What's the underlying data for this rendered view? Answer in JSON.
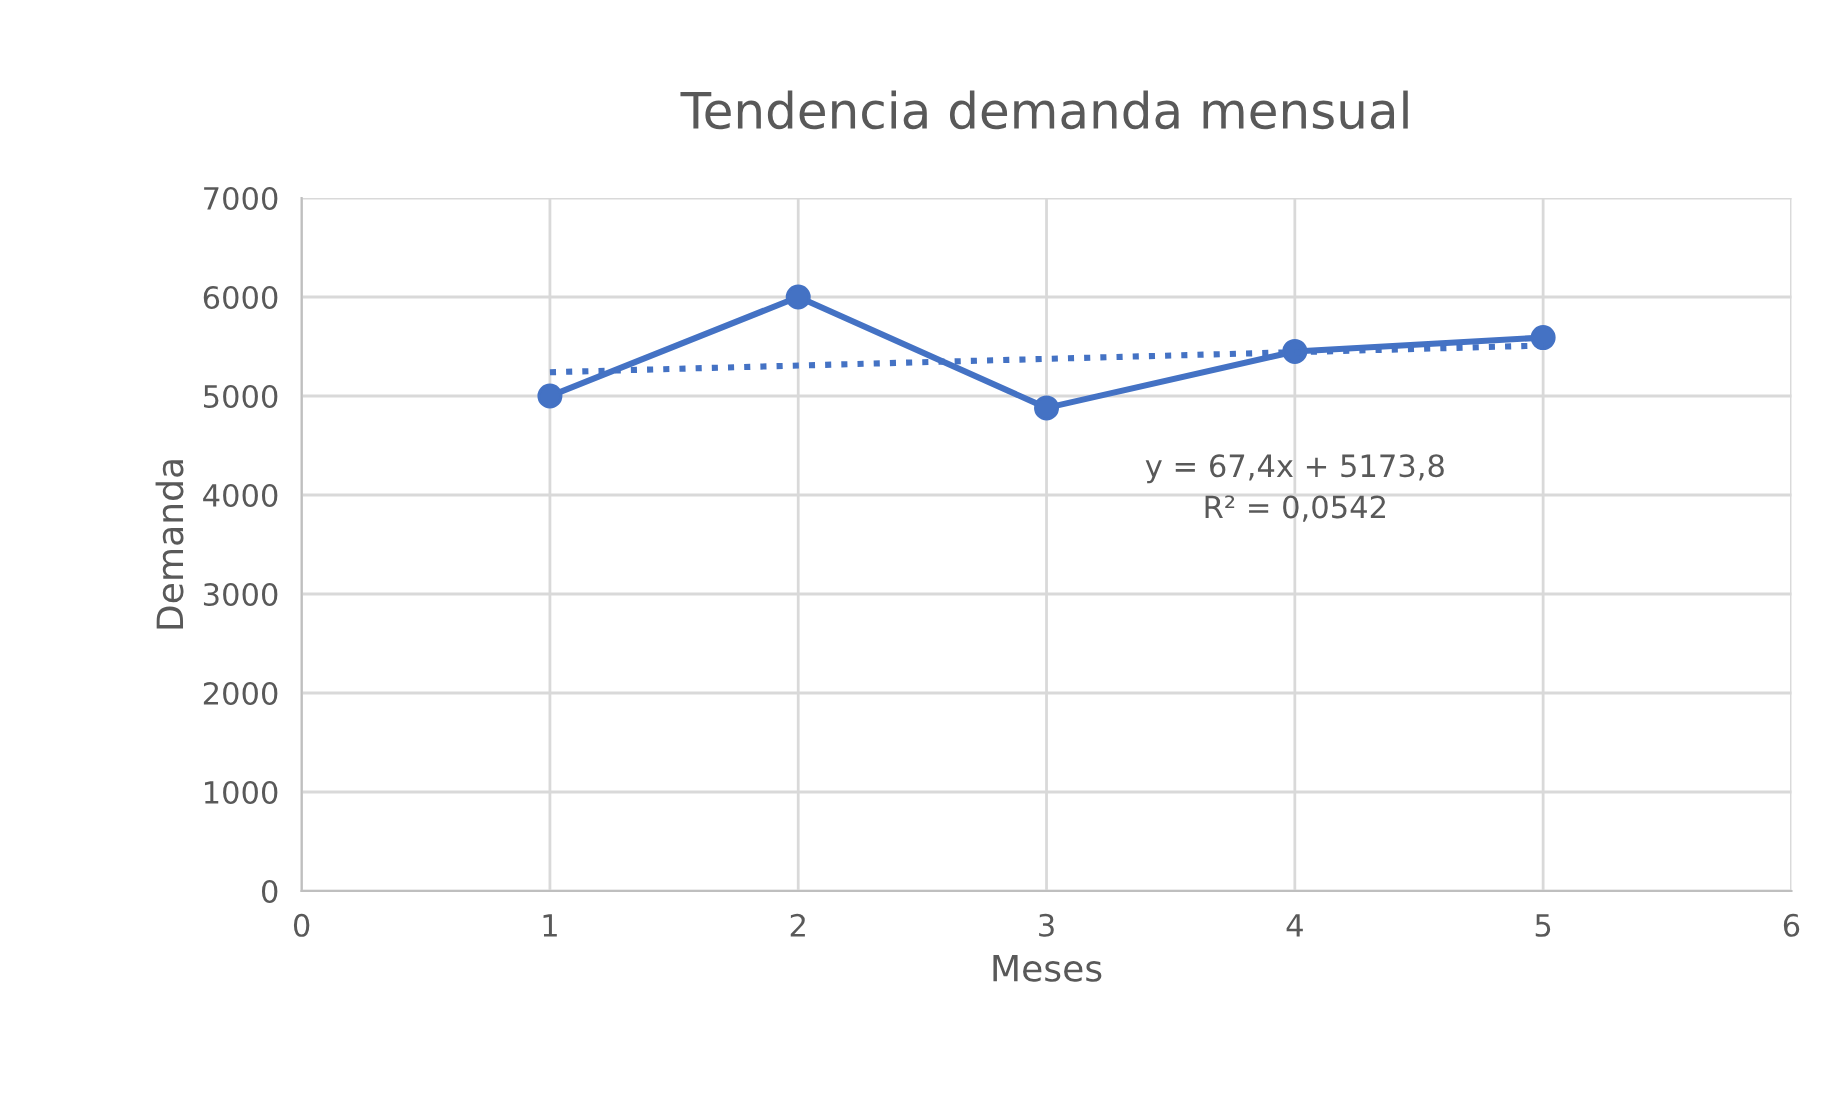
{
  "chart_data": {
    "type": "line",
    "title": "Tendencia demanda mensual",
    "xlabel": "Meses",
    "ylabel": "Demanda",
    "x": [
      1,
      2,
      3,
      4,
      5
    ],
    "series": [
      {
        "color": "#4472c4",
        "values": [
          5000,
          6000,
          4880,
          5450,
          5590
        ],
        "marker": "circle",
        "line_style": "solid"
      },
      {
        "type": "line",
        "color": "#4472c4",
        "x": [
          1,
          5
        ],
        "values": [
          5240,
          5510
        ],
        "marker": "none",
        "line_style": "dotted"
      }
    ],
    "annotations": [
      "y = 67,4x + 5173,8\nR² = 0,0542"
    ],
    "xlim": [
      0,
      6
    ],
    "xticks": [
      0,
      1,
      2,
      3,
      4,
      5,
      6
    ],
    "ylim": [
      0,
      7000
    ],
    "yticks": [
      0,
      1000,
      2000,
      3000,
      4000,
      5000,
      6000,
      7000
    ],
    "grid": true,
    "legend": false
  }
}
